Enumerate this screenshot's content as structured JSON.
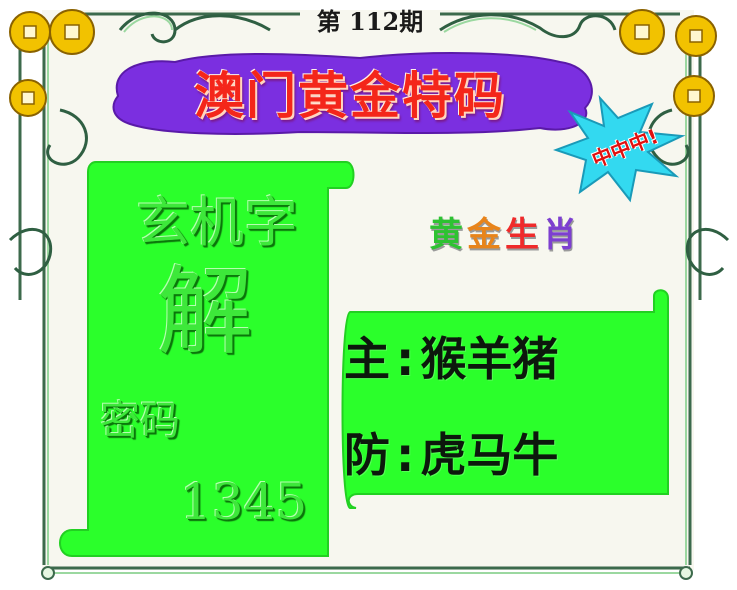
{
  "issue": {
    "label": "第 112期"
  },
  "title": {
    "text": "澳门黄金特码"
  },
  "burst": {
    "text": "中中中!"
  },
  "zodiac": {
    "chars": [
      "黄",
      "金",
      "生",
      "肖"
    ]
  },
  "puzzle": {
    "heading": "玄机字",
    "character": "解",
    "code_label": "密码",
    "code_value": "1345"
  },
  "picks": {
    "main_label": "主",
    "main_value": "猴羊猪",
    "guard_label": "防",
    "guard_value": "虎马牛",
    "separator": ":"
  },
  "colors": {
    "panel_green": "#2bff2b",
    "title_red": "#f4261a",
    "title_banner": "#7b2fe0",
    "burst_cyan": "#33d9f0",
    "coin_gold": "#f2c200"
  }
}
